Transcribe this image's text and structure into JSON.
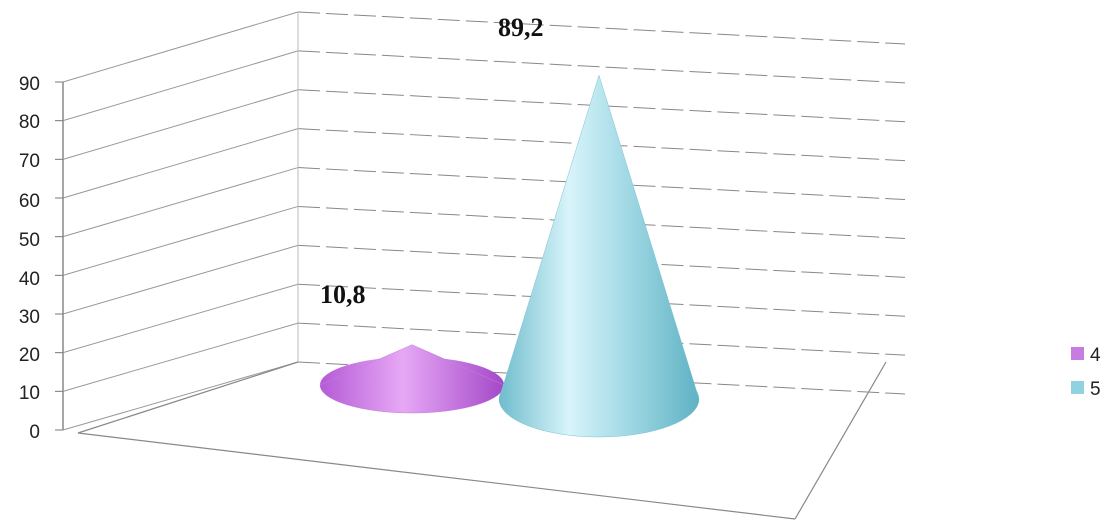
{
  "chart_data": {
    "type": "bar",
    "shape": "cone-3d",
    "y_ticks": [
      "0",
      "10",
      "20",
      "30",
      "40",
      "50",
      "60",
      "70",
      "80",
      "90"
    ],
    "ylim": [
      0,
      90
    ],
    "grid": true,
    "legend_position": "right",
    "series": [
      {
        "name": "4",
        "values": [
          10.8
        ],
        "label": "10,8",
        "color": "#c77ce0"
      },
      {
        "name": "5",
        "values": [
          89.2
        ],
        "label": "89,2",
        "color": "#8fd3e0"
      }
    ]
  }
}
